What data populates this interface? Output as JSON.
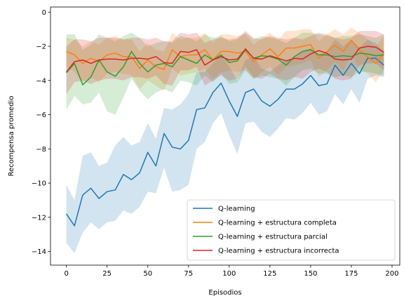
{
  "chart_data": {
    "type": "line",
    "xlabel": "Episodios",
    "ylabel": "Recompensa promedio",
    "xlim": [
      -9.75,
      204.75
    ],
    "ylim": [
      -14.8,
      0.3
    ],
    "xticks": [
      0,
      25,
      50,
      75,
      100,
      125,
      150,
      175,
      200
    ],
    "yticks": [
      0,
      -2,
      -4,
      -6,
      -8,
      -10,
      -12,
      -14
    ],
    "grid": false,
    "legend_position": "lower-right",
    "x": [
      0,
      5,
      10,
      15,
      20,
      25,
      30,
      35,
      40,
      45,
      50,
      55,
      60,
      65,
      70,
      75,
      80,
      85,
      90,
      95,
      100,
      105,
      110,
      115,
      120,
      125,
      130,
      135,
      140,
      145,
      150,
      155,
      160,
      165,
      170,
      175,
      180,
      185,
      190,
      195
    ],
    "series": [
      {
        "name": "Q-learning",
        "color": "#1f77b4",
        "values": [
          -11.8,
          -12.5,
          -10.7,
          -10.3,
          -10.9,
          -10.5,
          -10.4,
          -9.5,
          -9.8,
          -9.4,
          -8.2,
          -9.0,
          -7.1,
          -7.9,
          -8.0,
          -7.5,
          -5.7,
          -5.6,
          -4.7,
          -4.15,
          -5.2,
          -6.1,
          -4.7,
          -4.5,
          -5.2,
          -5.5,
          -5.1,
          -4.5,
          -4.5,
          -4.2,
          -3.7,
          -4.3,
          -4.2,
          -3.1,
          -3.7,
          -3.0,
          -3.6,
          -2.7,
          -2.7,
          -3.1
        ],
        "upper": [
          -10.1,
          -11.0,
          -8.4,
          -8.2,
          -9.0,
          -8.8,
          -7.8,
          -7.3,
          -7.8,
          -7.6,
          -6.5,
          -7.4,
          -5.6,
          -5.7,
          -5.4,
          -4.8,
          -3.5,
          -3.5,
          -3.0,
          -2.5,
          -3.2,
          -4.0,
          -2.8,
          -2.6,
          -3.3,
          -3.5,
          -3.1,
          -2.8,
          -2.7,
          -2.3,
          -2.1,
          -2.5,
          -2.3,
          -1.6,
          -2.0,
          -1.6,
          -2.1,
          -1.6,
          -1.8,
          -2.3
        ],
        "lower": [
          -13.5,
          -14.1,
          -12.9,
          -12.3,
          -12.7,
          -12.3,
          -12.2,
          -11.6,
          -11.8,
          -11.4,
          -10.5,
          -10.6,
          -9.1,
          -10.5,
          -10.4,
          -10.1,
          -8.0,
          -7.6,
          -6.5,
          -5.9,
          -7.2,
          -8.3,
          -6.5,
          -6.4,
          -7.0,
          -7.3,
          -6.8,
          -6.2,
          -6.3,
          -5.9,
          -5.3,
          -6.0,
          -5.8,
          -4.8,
          -5.4,
          -4.5,
          -5.3,
          -3.9,
          -3.7,
          -3.8
        ]
      },
      {
        "name": "Q-learning + estructura completa",
        "color": "#ff7f0e",
        "values": [
          -2.3,
          -2.5,
          -3.0,
          -2.7,
          -2.9,
          -2.5,
          -2.4,
          -2.6,
          -2.6,
          -3.3,
          -2.8,
          -3.2,
          -3.35,
          -2.2,
          -2.6,
          -2.5,
          -2.5,
          -2.2,
          -2.8,
          -2.3,
          -2.3,
          -2.4,
          -2.3,
          -2.9,
          -2.5,
          -2.15,
          -2.6,
          -2.1,
          -2.1,
          -2.0,
          -1.9,
          -2.7,
          -2.3,
          -1.95,
          -2.3,
          -1.65,
          -2.2,
          -2.6,
          -3.0,
          -2.4
        ],
        "upper": [
          -1.5,
          -1.6,
          -2.0,
          -1.7,
          -1.9,
          -1.5,
          -1.4,
          -1.6,
          -1.6,
          -2.3,
          -1.8,
          -2.2,
          -2.3,
          -1.2,
          -1.6,
          -1.5,
          -1.5,
          -1.2,
          -1.8,
          -1.3,
          -1.3,
          -1.4,
          -1.3,
          -1.9,
          -1.5,
          -1.2,
          -1.6,
          -1.1,
          -1.1,
          -1.0,
          -1.0,
          -1.7,
          -1.3,
          -1.0,
          -1.3,
          -0.9,
          -1.2,
          -1.6,
          -2.0,
          -1.4
        ],
        "lower": [
          -3.2,
          -3.5,
          -4.1,
          -3.8,
          -4.1,
          -3.6,
          -3.5,
          -3.6,
          -3.7,
          -4.5,
          -4.0,
          -4.3,
          -4.6,
          -3.3,
          -3.7,
          -3.6,
          -3.5,
          -3.3,
          -3.9,
          -3.5,
          -3.4,
          -3.5,
          -3.4,
          -3.9,
          -3.5,
          -3.2,
          -3.7,
          -3.2,
          -3.1,
          -3.0,
          -2.8,
          -3.8,
          -3.4,
          -2.9,
          -3.4,
          -2.5,
          -3.3,
          -3.6,
          -4.1,
          -3.4
        ]
      },
      {
        "name": "Q-learning + estructura parcial",
        "color": "#2ca02c",
        "values": [
          -3.55,
          -3.0,
          -4.25,
          -3.8,
          -2.8,
          -3.5,
          -3.75,
          -3.2,
          -2.3,
          -3.0,
          -3.5,
          -3.1,
          -3.0,
          -3.2,
          -2.6,
          -2.8,
          -3.0,
          -2.5,
          -2.8,
          -2.5,
          -2.95,
          -2.85,
          -2.2,
          -2.7,
          -2.55,
          -2.6,
          -2.75,
          -3.1,
          -2.6,
          -2.3,
          -2.2,
          -2.5,
          -2.5,
          -2.6,
          -2.55,
          -2.6,
          -2.4,
          -2.45,
          -2.55,
          -2.5
        ],
        "upper": [
          -1.3,
          -1.3,
          -2.2,
          -1.9,
          -1.3,
          -1.5,
          -1.7,
          -1.4,
          -1.2,
          -1.5,
          -2.0,
          -1.8,
          -1.7,
          -1.8,
          -1.4,
          -1.5,
          -1.7,
          -1.3,
          -1.5,
          -1.4,
          -1.7,
          -1.6,
          -1.2,
          -1.6,
          -1.4,
          -1.5,
          -1.6,
          -1.8,
          -1.5,
          -1.2,
          -1.2,
          -1.3,
          -1.4,
          -1.5,
          -1.4,
          -1.4,
          -1.3,
          -1.4,
          -1.5,
          -1.3
        ],
        "lower": [
          -5.7,
          -4.9,
          -5.4,
          -5.3,
          -4.7,
          -5.8,
          -6.0,
          -5.0,
          -3.9,
          -4.6,
          -5.1,
          -4.7,
          -4.5,
          -4.7,
          -4.0,
          -4.1,
          -4.3,
          -3.7,
          -4.1,
          -3.6,
          -4.2,
          -4.1,
          -3.4,
          -3.9,
          -3.7,
          -3.8,
          -3.9,
          -4.3,
          -3.8,
          -3.4,
          -3.3,
          -3.6,
          -3.6,
          -3.8,
          -3.7,
          -3.8,
          -3.5,
          -3.5,
          -3.6,
          -3.7
        ]
      },
      {
        "name": "Q-learning + estructura incorrecta",
        "color": "#d62728",
        "values": [
          -3.5,
          -2.9,
          -2.8,
          -3.0,
          -2.8,
          -2.75,
          -2.75,
          -2.8,
          -2.7,
          -2.7,
          -2.75,
          -2.6,
          -2.95,
          -3.0,
          -2.3,
          -2.35,
          -2.2,
          -3.1,
          -2.8,
          -2.6,
          -2.8,
          -2.75,
          -2.15,
          -2.7,
          -2.75,
          -2.55,
          -2.7,
          -2.85,
          -2.7,
          -2.75,
          -2.45,
          -2.25,
          -2.4,
          -2.75,
          -2.8,
          -2.75,
          -2.1,
          -2.0,
          -2.05,
          -2.35
        ],
        "upper": [
          -2.0,
          -1.6,
          -1.6,
          -1.7,
          -1.5,
          -1.5,
          -1.5,
          -1.6,
          -1.5,
          -1.5,
          -1.6,
          -1.5,
          -1.7,
          -1.7,
          -1.2,
          -1.3,
          -1.2,
          -1.8,
          -1.6,
          -1.5,
          -1.6,
          -1.5,
          -1.1,
          -1.5,
          -1.6,
          -1.4,
          -1.5,
          -1.6,
          -1.5,
          -1.6,
          -1.4,
          -1.2,
          -1.3,
          -1.5,
          -1.6,
          -1.5,
          -1.1,
          -1.1,
          -1.1,
          -1.3
        ],
        "lower": [
          -4.8,
          -4.1,
          -4.0,
          -4.2,
          -4.0,
          -3.9,
          -3.9,
          -4.0,
          -3.8,
          -3.8,
          -3.9,
          -3.7,
          -4.2,
          -4.3,
          -3.4,
          -3.4,
          -3.2,
          -4.3,
          -4.0,
          -3.7,
          -4.0,
          -3.9,
          -3.2,
          -3.8,
          -3.9,
          -3.6,
          -3.9,
          -4.0,
          -3.8,
          -3.9,
          -3.5,
          -3.3,
          -3.5,
          -3.9,
          -4.0,
          -3.9,
          -3.1,
          -3.0,
          -3.0,
          -3.4
        ]
      }
    ]
  }
}
